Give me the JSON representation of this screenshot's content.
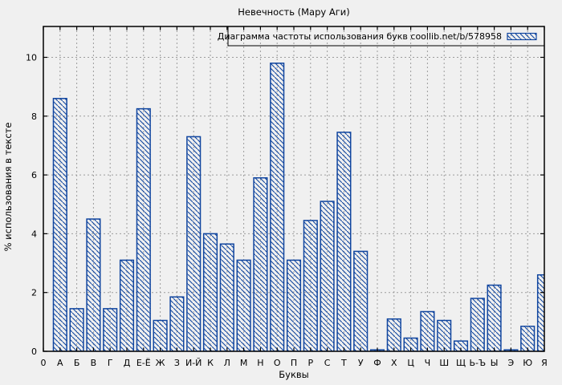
{
  "chart_data": {
    "type": "bar",
    "title": "Невечность (Мару Аги)",
    "legend": "Диаграмма частоты использования букв coollib.net/b/578958",
    "xlabel": "Буквы",
    "ylabel": "% использования в тексте",
    "x_origin_label": "0",
    "categories": [
      "А",
      "Б",
      "В",
      "Г",
      "Д",
      "Е-Ё",
      "Ж",
      "З",
      "И-Й",
      "К",
      "Л",
      "М",
      "Н",
      "О",
      "П",
      "Р",
      "С",
      "Т",
      "У",
      "Ф",
      "Х",
      "Ц",
      "Ч",
      "Ш",
      "Щ",
      "Ь-Ъ",
      "Ы",
      "Э",
      "Ю",
      "Я"
    ],
    "values": [
      8.6,
      1.45,
      4.5,
      1.45,
      3.1,
      8.25,
      1.05,
      1.85,
      7.3,
      4.0,
      3.65,
      3.1,
      5.9,
      9.8,
      3.1,
      4.45,
      5.1,
      7.45,
      3.4,
      0.05,
      1.1,
      0.45,
      1.35,
      1.05,
      0.35,
      1.8,
      2.25,
      0.05,
      0.85,
      2.6
    ],
    "yticks": [
      0,
      2,
      4,
      6,
      8,
      10
    ],
    "ylim": [
      0,
      11.05
    ],
    "grid": true,
    "legend_position": "top-right",
    "colors": {
      "bar": "#10459f",
      "axis": "#000000",
      "grid": "#9c9c9c",
      "background": "#f0f0f0"
    }
  }
}
